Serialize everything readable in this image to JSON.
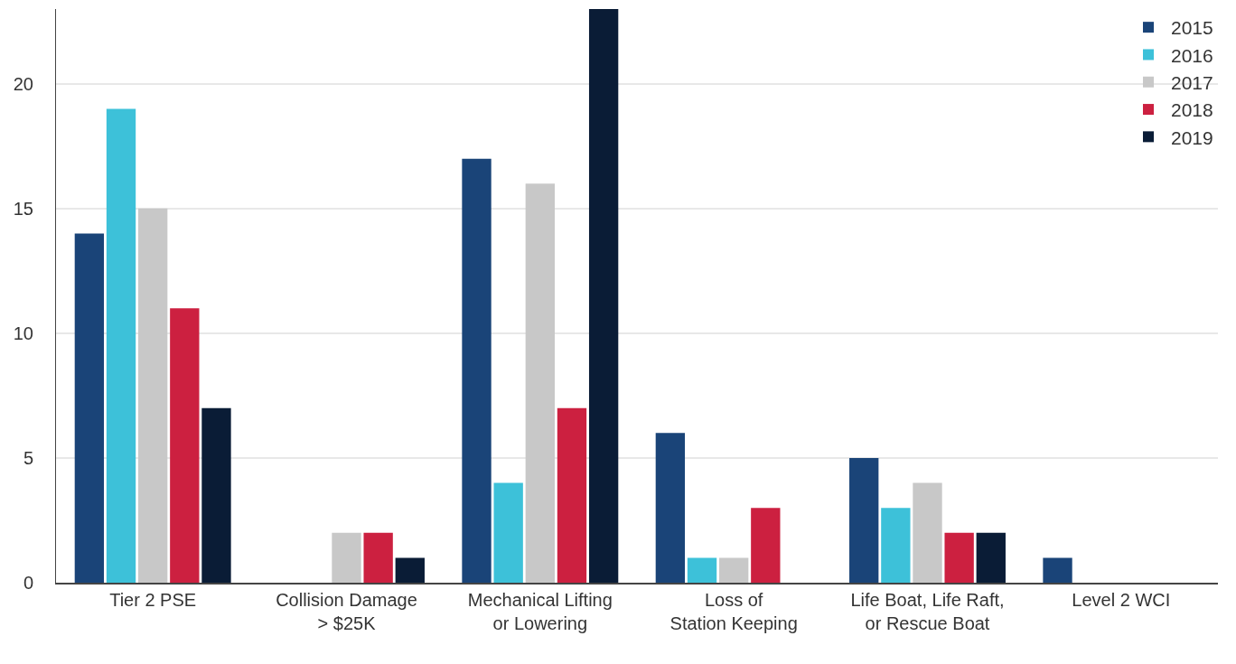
{
  "chart_data": {
    "type": "bar",
    "categories": [
      "Tier 2 PSE",
      "Collision Damage\n> $25K",
      "Mechanical Lifting\nor Lowering",
      "Loss of\nStation Keeping",
      "Life Boat, Life Raft,\nor Rescue Boat",
      "Level 2 WCI"
    ],
    "series": [
      {
        "name": "2015",
        "color": "#1a4478",
        "values": [
          14,
          0,
          17,
          6,
          5,
          1
        ]
      },
      {
        "name": "2016",
        "color": "#3dc1d9",
        "values": [
          19,
          0,
          4,
          1,
          3,
          0
        ]
      },
      {
        "name": "2017",
        "color": "#c8c8c8",
        "values": [
          15,
          2,
          16,
          1,
          4,
          0
        ]
      },
      {
        "name": "2018",
        "color": "#cc2040",
        "values": [
          11,
          2,
          7,
          3,
          2,
          0
        ]
      },
      {
        "name": "2019",
        "color": "#0a1c36",
        "values": [
          7,
          1,
          23,
          0,
          2,
          0
        ]
      }
    ],
    "ylim": [
      0,
      23
    ],
    "yticks": [
      0,
      5,
      10,
      15,
      20
    ],
    "grid": "y",
    "legend": "top right"
  }
}
